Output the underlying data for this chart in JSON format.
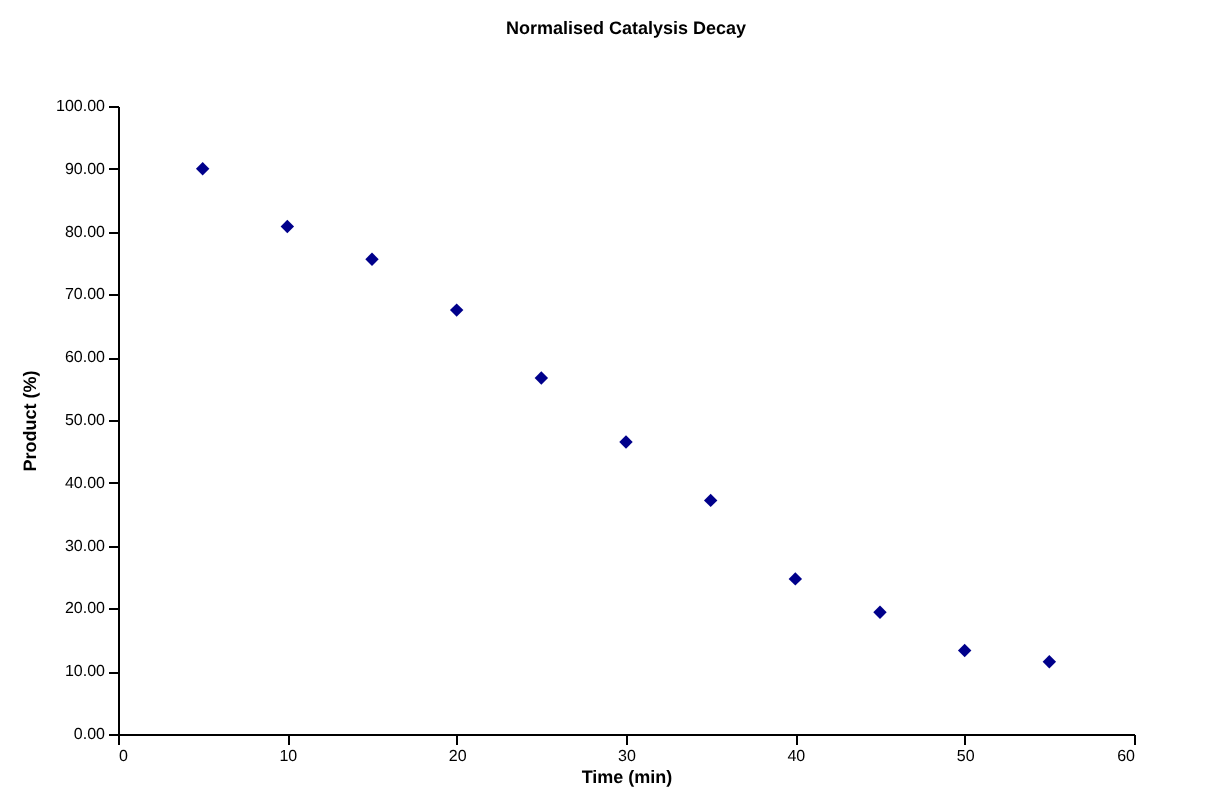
{
  "chart_data": {
    "type": "scatter",
    "title": "Normalised Catalysis Decay",
    "xlabel": "Time (min)",
    "ylabel": "Product (%)",
    "x": [
      5,
      10,
      15,
      20,
      25,
      30,
      35,
      40,
      45,
      50,
      55
    ],
    "series": [
      {
        "color": "#00008b",
        "values": [
          90,
          80.8,
          75.6,
          67.5,
          56.7,
          46.5,
          37.2,
          24.7,
          19.4,
          13.3,
          11.5
        ]
      }
    ],
    "xlim": [
      0,
      60
    ],
    "xticks": [
      0,
      10,
      20,
      30,
      40,
      50,
      60
    ],
    "ylim": [
      0,
      100
    ],
    "yticks": [
      {
        "value": 0,
        "label": "0.00"
      },
      {
        "value": 10,
        "label": "10.00"
      },
      {
        "value": 20,
        "label": "20.00"
      },
      {
        "value": 30,
        "label": "30.00"
      },
      {
        "value": 40,
        "label": "40.00"
      },
      {
        "value": 50,
        "label": "50.00"
      },
      {
        "value": 60,
        "label": "60.00"
      },
      {
        "value": 70,
        "label": "70.00"
      },
      {
        "value": 80,
        "label": "80.00"
      },
      {
        "value": 90,
        "label": "90.00"
      },
      {
        "value": 100,
        "label": "100.00"
      }
    ],
    "marker": "diamond",
    "grid": false
  }
}
